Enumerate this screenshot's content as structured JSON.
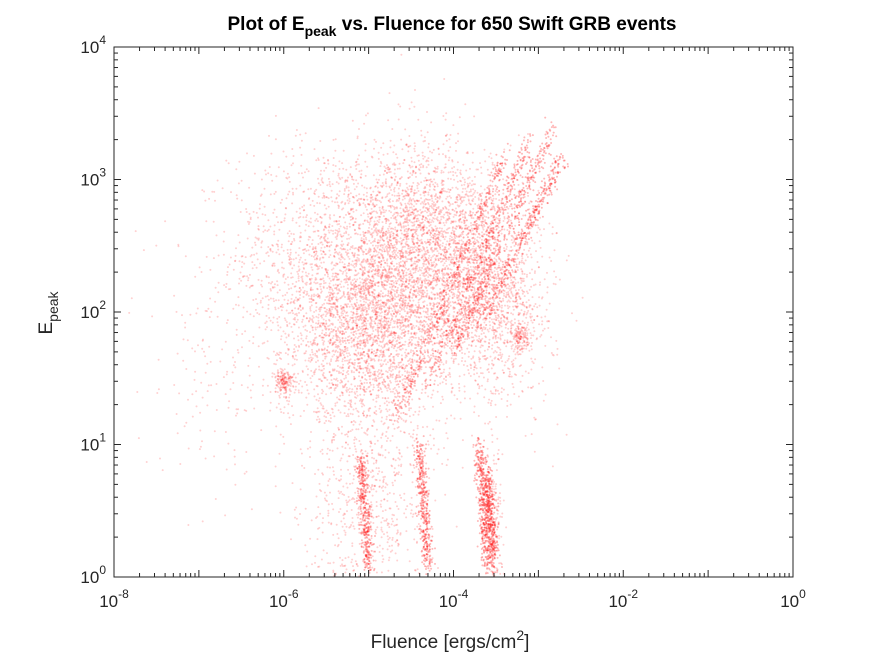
{
  "chart_data": {
    "type": "scatter",
    "title": "Plot of E",
    "title_subscript": "peak",
    "title_rest": " vs. Fluence for 650 Swift GRB events",
    "xlabel": "Fluence [ergs/cm",
    "xlabel_superscript": "2",
    "xlabel_end": "]",
    "ylabel": "E",
    "ylabel_subscript": "peak",
    "xscale": "log",
    "yscale": "log",
    "xlim": [
      1e-08,
      1
    ],
    "ylim": [
      1,
      10000
    ],
    "grid": false,
    "box": true,
    "x_ticks": [
      {
        "base": "10",
        "exp": "-8"
      },
      {
        "base": "10",
        "exp": "-6"
      },
      {
        "base": "10",
        "exp": "-4"
      },
      {
        "base": "10",
        "exp": "-2"
      },
      {
        "base": "10",
        "exp": "0"
      }
    ],
    "y_ticks": [
      {
        "base": "10",
        "exp": "0"
      },
      {
        "base": "10",
        "exp": "1"
      },
      {
        "base": "10",
        "exp": "2"
      },
      {
        "base": "10",
        "exp": "3"
      },
      {
        "base": "10",
        "exp": "4"
      }
    ],
    "marker_color": "#ff0000",
    "series": [
      {
        "values": [
          {
            "x": 3e-06,
            "y": 250,
            "spread_x": 0.55,
            "spread_y": 0.45,
            "weight": 0.4
          },
          {
            "x": 1.5e-05,
            "y": 110,
            "spread_x": 0.45,
            "spread_y": 0.35,
            "weight": 0.6
          },
          {
            "x": 4e-05,
            "y": 400,
            "spread_x": 0.4,
            "spread_y": 0.35,
            "weight": 0.5
          },
          {
            "x": 0.00015,
            "y": 200,
            "spread_x": 0.35,
            "spread_y": 0.4,
            "weight": 0.4
          },
          {
            "x": 8e-06,
            "y": 50,
            "spread_x": 0.5,
            "spread_y": 0.3,
            "weight": 0.3
          },
          {
            "x": 0.0004,
            "y": 120,
            "spread_x": 0.3,
            "spread_y": 0.4,
            "weight": 0.25
          },
          {
            "x": 1e-06,
            "y": 30,
            "spread_x": 0.05,
            "spread_y": 0.05,
            "weight": 0.05
          },
          {
            "x": 0.0006,
            "y": 65,
            "spread_x": 0.05,
            "spread_y": 0.05,
            "weight": 0.04
          },
          {
            "x": 1e-05,
            "y": 4,
            "spread_x": 0.4,
            "spread_y": 0.5,
            "weight": 0.25
          },
          {
            "x": 2e-07,
            "y": 40,
            "spread_x": 0.5,
            "spread_y": 0.6,
            "weight": 0.05
          },
          {
            "x": 0.0003,
            "y": 2,
            "spread_x": 0.05,
            "spread_y": 0.35,
            "weight": 0.06
          }
        ],
        "streaks": [
          {
            "x": 2e-05,
            "y": 15,
            "x2": 0.0004,
            "y2": 1500
          },
          {
            "x": 5e-05,
            "y": 30,
            "x2": 0.0008,
            "y2": 2000
          },
          {
            "x": 0.0001,
            "y": 50,
            "x2": 0.0015,
            "y2": 2500
          },
          {
            "x": 0.0002,
            "y": 80,
            "x2": 0.002,
            "y2": 1500
          },
          {
            "x": 0.00025,
            "y": 1.2,
            "x2": 0.0002,
            "y2": 10
          },
          {
            "x": 5e-05,
            "y": 1.2,
            "x2": 4e-05,
            "y2": 10
          },
          {
            "x": 1e-05,
            "y": 1.2,
            "x2": 8e-06,
            "y2": 8
          },
          {
            "x": 0.0003,
            "y": 1.3,
            "x2": 0.00025,
            "y2": 6
          }
        ]
      }
    ]
  }
}
